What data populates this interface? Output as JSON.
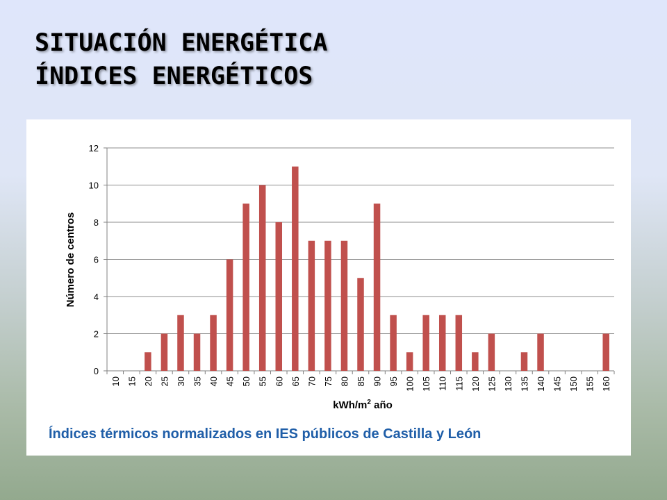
{
  "slide": {
    "title_line1": "SITUACIÓN ENERGÉTICA",
    "title_line2": "ÍNDICES ENERGÉTICOS"
  },
  "chart_data": {
    "type": "bar",
    "caption": "Índices térmicos normalizados en IES públicos de Castilla y León",
    "ylabel": "Número de centros",
    "xlabel_main": "kWh/m",
    "xlabel_sup": "2",
    "xlabel_tail": " año",
    "ylim": [
      0,
      12
    ],
    "yticks": [
      0,
      2,
      4,
      6,
      8,
      10,
      12
    ],
    "categories": [
      "10",
      "15",
      "20",
      "25",
      "30",
      "35",
      "40",
      "45",
      "50",
      "55",
      "60",
      "65",
      "70",
      "75",
      "80",
      "85",
      "90",
      "95",
      "100",
      "105",
      "110",
      "115",
      "120",
      "125",
      "130",
      "135",
      "140",
      "145",
      "150",
      "155",
      "160"
    ],
    "values": [
      0,
      0,
      1,
      2,
      3,
      2,
      3,
      6,
      9,
      10,
      8,
      11,
      7,
      7,
      7,
      5,
      9,
      3,
      1,
      3,
      3,
      3,
      1,
      2,
      0,
      1,
      2,
      0,
      0,
      0,
      2
    ],
    "grid": true,
    "legend": "none",
    "bar_color": "#c0504d"
  }
}
